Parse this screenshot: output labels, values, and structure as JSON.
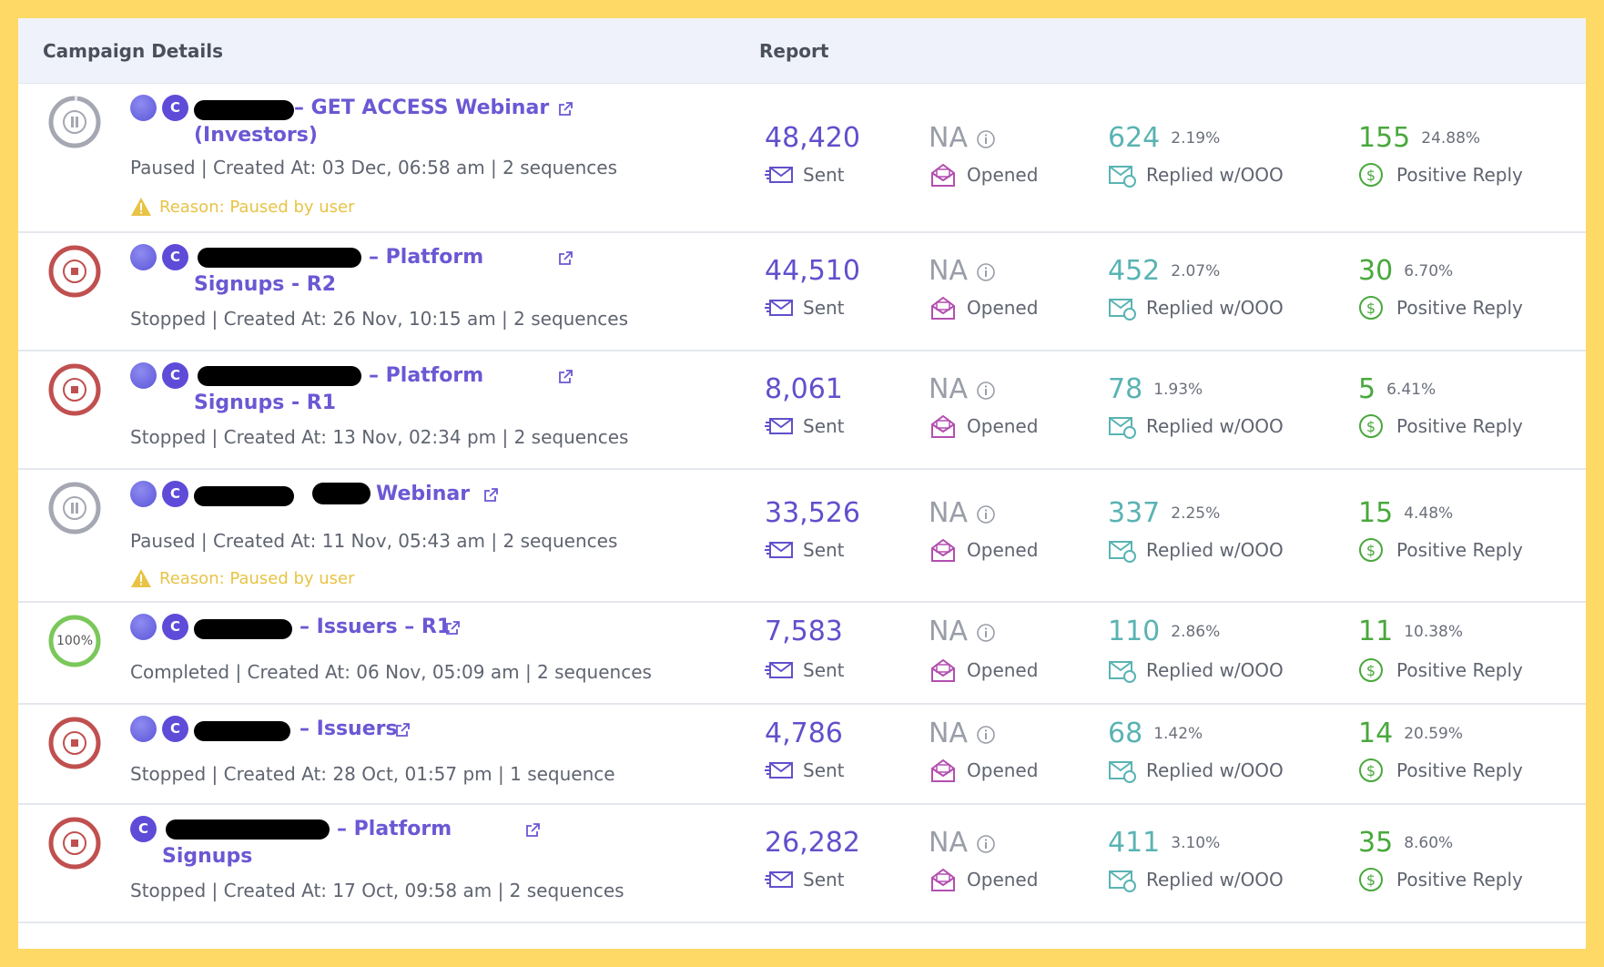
{
  "header": {
    "campaign_details": "Campaign Details",
    "report": "Report"
  },
  "labels": {
    "sent": "Sent",
    "opened": "Opened",
    "replied": "Replied w/OOO",
    "positive": "Positive Reply",
    "c_badge": "C"
  },
  "colors": {
    "sent": "#6050CC",
    "na": "#999EA8",
    "replied": "#5AB3B3",
    "positive": "#49A83C",
    "stopped": "#C0504F",
    "paused": "#A5A8B2",
    "completed": "#7BC85A",
    "name": "#6A58D4",
    "reason": "#E8C345"
  },
  "campaigns": [
    {
      "status": "paused",
      "name_line1": "– GET ACCESS Webinar",
      "name_line2": "(Investors)",
      "meta": "Paused | Created At: 03 Dec, 06:58 am | 2 sequences",
      "reason": "Reason: Paused by user",
      "sent": "48,420",
      "opened": "NA",
      "replied": "624",
      "replied_pct": "2.19%",
      "positive": "155",
      "positive_pct": "24.88%"
    },
    {
      "status": "stopped",
      "name_line1": "– Platform",
      "name_line2": "Signups - R2",
      "meta": "Stopped | Created At: 26 Nov, 10:15 am | 2 sequences",
      "sent": "44,510",
      "opened": "NA",
      "replied": "452",
      "replied_pct": "2.07%",
      "positive": "30",
      "positive_pct": "6.70%"
    },
    {
      "status": "stopped",
      "name_line1": "– Platform",
      "name_line2": "Signups - R1",
      "meta": "Stopped | Created At: 13 Nov, 02:34 pm | 2 sequences",
      "sent": "8,061",
      "opened": "NA",
      "replied": "78",
      "replied_pct": "1.93%",
      "positive": "5",
      "positive_pct": "6.41%"
    },
    {
      "status": "paused",
      "name_line1": "Webinar",
      "meta": "Paused | Created At: 11 Nov, 05:43 am | 2 sequences",
      "reason": "Reason: Paused by user",
      "sent": "33,526",
      "opened": "NA",
      "replied": "337",
      "replied_pct": "2.25%",
      "positive": "15",
      "positive_pct": "4.48%"
    },
    {
      "status": "completed",
      "progress_label": "100%",
      "progress": 100,
      "name_line1": "– Issuers – R1",
      "meta": "Completed | Created At: 06 Nov, 05:09 am | 2 sequences",
      "sent": "7,583",
      "opened": "NA",
      "replied": "110",
      "replied_pct": "2.86%",
      "positive": "11",
      "positive_pct": "10.38%"
    },
    {
      "status": "stopped",
      "name_line1": "– Issuers",
      "meta": "Stopped | Created At: 28 Oct, 01:57 pm | 1 sequence",
      "sent": "4,786",
      "opened": "NA",
      "replied": "68",
      "replied_pct": "1.42%",
      "positive": "14",
      "positive_pct": "20.59%"
    },
    {
      "status": "stopped",
      "name_line1": "– Platform",
      "name_line2": "Signups",
      "meta": "Stopped | Created At: 17 Oct, 09:58 am | 2 sequences",
      "sent": "26,282",
      "opened": "NA",
      "replied": "411",
      "replied_pct": "3.10%",
      "positive": "35",
      "positive_pct": "8.60%"
    }
  ]
}
